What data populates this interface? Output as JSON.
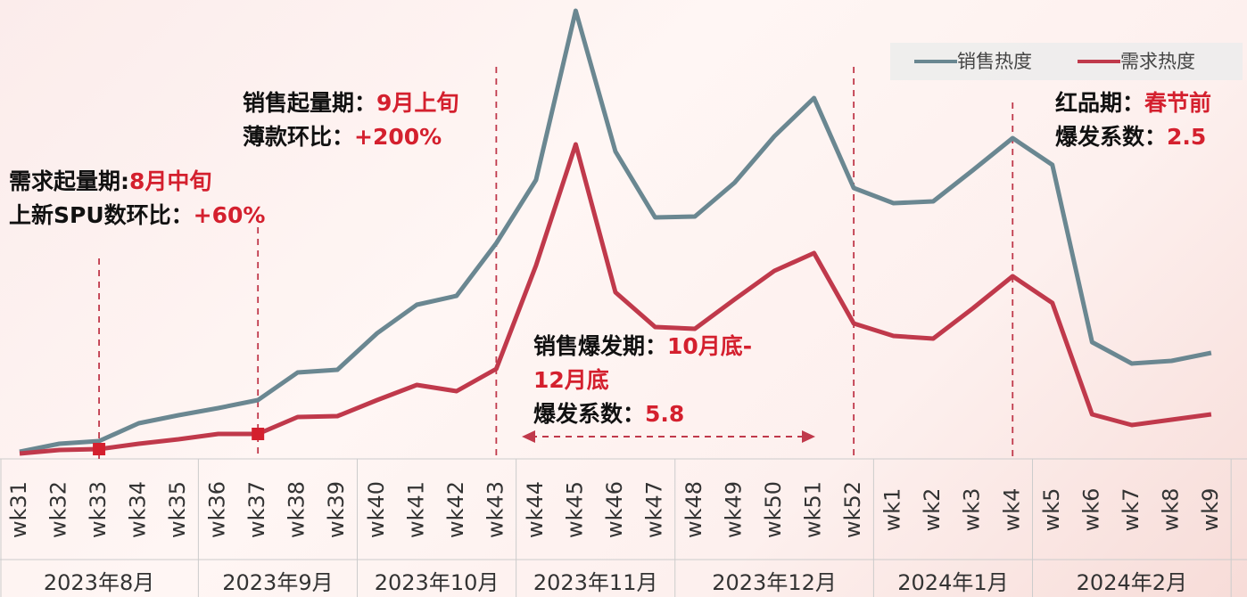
{
  "chart_data": {
    "type": "line",
    "categories": [
      "wk31",
      "wk32",
      "wk33",
      "wk34",
      "wk35",
      "wk36",
      "wk37",
      "wk38",
      "wk39",
      "wk40",
      "wk41",
      "wk42",
      "wk43",
      "wk44",
      "wk45",
      "wk46",
      "wk47",
      "wk48",
      "wk49",
      "wk50",
      "wk51",
      "wk52",
      "wk1",
      "wk2",
      "wk3",
      "wk4",
      "wk5",
      "wk6",
      "wk7",
      "wk8",
      "wk9"
    ],
    "months": [
      {
        "label": "2023年8月",
        "span": 5
      },
      {
        "label": "2023年9月",
        "span": 4
      },
      {
        "label": "2023年10月",
        "span": 4
      },
      {
        "label": "2023年11月",
        "span": 4
      },
      {
        "label": "2023年12月",
        "span": 5
      },
      {
        "label": "2024年1月",
        "span": 4
      },
      {
        "label": "2024年2月",
        "span": 5
      }
    ],
    "series": [
      {
        "name": "销售热度",
        "color": "#6a8791",
        "values": [
          1.6,
          3.4,
          4,
          8,
          9.8,
          11.4,
          13.2,
          19.4,
          20,
          28.2,
          34.6,
          36.6,
          48.4,
          62.6,
          100.6,
          69,
          54.2,
          54.4,
          62,
          72.4,
          81,
          60.8,
          57.4,
          57.8,
          64.8,
          72,
          66,
          26.2,
          21.4,
          22,
          23.8
        ]
      },
      {
        "name": "需求热度",
        "color": "#c0394b",
        "values": [
          1.2,
          2,
          2.2,
          3.4,
          4.4,
          5.6,
          5.6,
          9.4,
          9.6,
          13.2,
          16.6,
          15.2,
          20.2,
          43.4,
          70.6,
          37.4,
          29.6,
          29.2,
          35.8,
          42.2,
          46.2,
          30.4,
          27.6,
          27,
          33.8,
          41,
          35,
          10,
          7.6,
          8.8,
          10
        ]
      }
    ],
    "ylim": [
      0,
      102
    ],
    "annotations": [
      {
        "lines": [
          {
            "label": "需求起量期:",
            "value": "8月中旬"
          },
          {
            "label": "上新SPU数环比：",
            "value": "+60%"
          }
        ]
      },
      {
        "lines": [
          {
            "label": "销售起量期：",
            "value": "9月上旬"
          },
          {
            "label": "薄款环比：",
            "value": "+200%"
          }
        ]
      },
      {
        "lines": [
          {
            "label": "销售爆发期：",
            "value": "10月底-"
          },
          {
            "value": "12月底"
          },
          {
            "label": "爆发系数：",
            "value": "5.8"
          }
        ]
      },
      {
        "lines": [
          {
            "label": "红品期：",
            "value": "春节前"
          },
          {
            "label": "爆发系数：",
            "value": "2.5"
          }
        ]
      }
    ]
  }
}
